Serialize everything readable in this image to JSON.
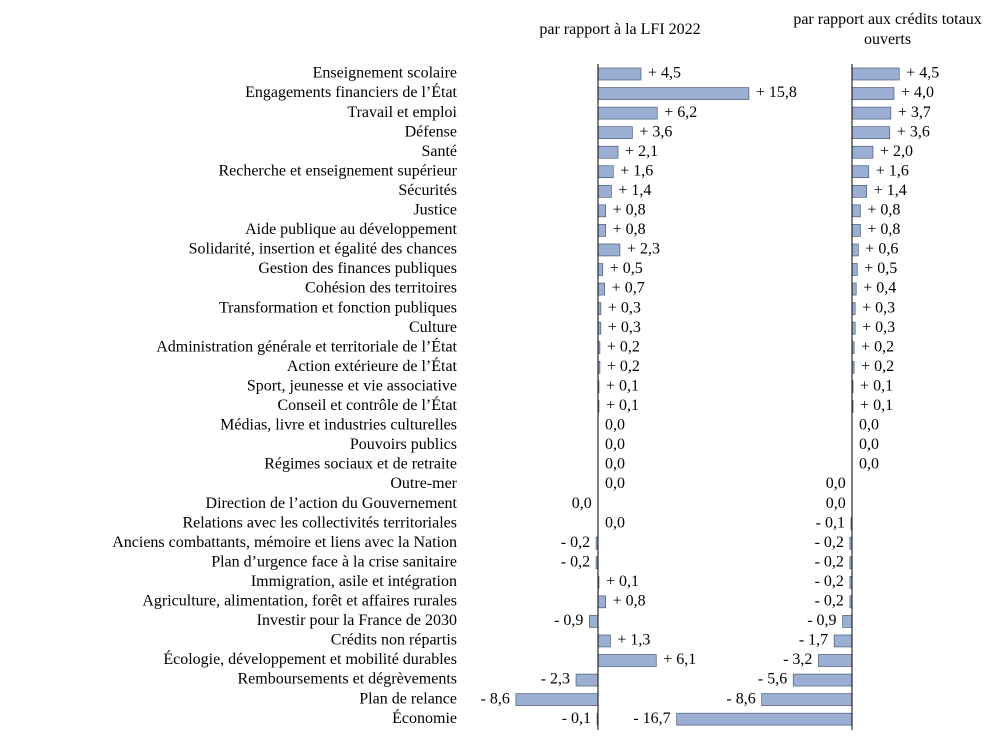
{
  "chart_data": {
    "type": "bar",
    "orientation": "horizontal",
    "categories": [
      "Enseignement scolaire",
      "Engagements financiers de l’État",
      "Travail et emploi",
      "Défense",
      "Santé",
      "Recherche et enseignement supérieur",
      "Sécurités",
      "Justice",
      "Aide publique au développement",
      "Solidarité, insertion et égalité des chances",
      "Gestion des finances publiques",
      "Cohésion des territoires",
      "Transformation et fonction publiques",
      "Culture",
      "Administration générale et territoriale de l’État",
      "Action extérieure de l’État",
      "Sport, jeunesse et vie associative",
      "Conseil et contrôle de l’État",
      "Médias, livre et industries culturelles",
      "Pouvoirs publics",
      "Régimes sociaux et de retraite",
      "Outre-mer",
      "Direction de l’action du Gouvernement",
      "Relations avec les collectivités territoriales",
      "Anciens combattants, mémoire et liens avec la Nation",
      "Plan d’urgence face à la crise sanitaire",
      "Immigration, asile et intégration",
      "Agriculture, alimentation, forêt et affaires rurales",
      "Investir pour la France de 2030",
      "Crédits non répartis",
      "Écologie, développement et mobilité durables",
      "Remboursements et dégrèvements",
      "Plan de relance",
      "Économie"
    ],
    "series": [
      {
        "name": "par rapport à la LFI 2022",
        "color": "#9aafd3",
        "xlim": [
          -10,
          20
        ],
        "values": [
          4.5,
          15.8,
          6.2,
          3.6,
          2.1,
          1.6,
          1.4,
          0.8,
          0.8,
          2.3,
          0.5,
          0.7,
          0.3,
          0.3,
          0.2,
          0.2,
          0.1,
          0.1,
          0,
          0,
          0,
          0,
          -0.02,
          0,
          -0.2,
          -0.2,
          0.1,
          0.8,
          -0.9,
          1.3,
          6.1,
          -2.3,
          -8.6,
          -0.1
        ],
        "value_labels": [
          "+ 4,5",
          "+ 15,8",
          "+ 6,2",
          "+ 3,6",
          "+ 2,1",
          "+ 1,6",
          "+ 1,4",
          "+ 0,8",
          "+ 0,8",
          "+ 2,3",
          "+ 0,5",
          "+ 0,7",
          "+ 0,3",
          "+ 0,3",
          "+ 0,2",
          "+ 0,2",
          "+ 0,1",
          "+ 0,1",
          "0,0",
          "0,0",
          "0,0",
          "0,0",
          "0,0",
          "0,0",
          "- 0,2",
          "- 0,2",
          "+ 0,1",
          "+ 0,8",
          "- 0,9",
          "+ 1,3",
          "+ 6,1",
          "- 2,3",
          "- 8,6",
          "- 0,1"
        ]
      },
      {
        "name": "par rapport aux crédits totaux ouverts",
        "color": "#9aafd3",
        "xlim": [
          -20,
          10
        ],
        "values": [
          4.5,
          4.0,
          3.7,
          3.6,
          2.0,
          1.6,
          1.4,
          0.8,
          0.8,
          0.6,
          0.5,
          0.4,
          0.3,
          0.3,
          0.2,
          0.2,
          0.1,
          0.1,
          0,
          0,
          0,
          -0.02,
          -0.02,
          -0.1,
          -0.2,
          -0.2,
          -0.2,
          -0.2,
          -0.9,
          -1.7,
          -3.2,
          -5.6,
          -8.6,
          -16.7
        ],
        "value_labels": [
          "+ 4,5",
          "+ 4,0",
          "+ 3,7",
          "+ 3,6",
          "+ 2,0",
          "+ 1,6",
          "+ 1,4",
          "+ 0,8",
          "+ 0,8",
          "+ 0,6",
          "+ 0,5",
          "+ 0,4",
          "+ 0,3",
          "+ 0,3",
          "+ 0,2",
          "+ 0,2",
          "+ 0,1",
          "+ 0,1",
          "0,0",
          "0,0",
          "0,0",
          "0,0",
          "0,0",
          "- 0,1",
          "- 0,2",
          "- 0,2",
          "- 0,2",
          "- 0,2",
          "- 0,9",
          "- 1,7",
          "- 3,2",
          "- 5,6",
          "- 8,6",
          "- 16,7"
        ]
      }
    ]
  }
}
